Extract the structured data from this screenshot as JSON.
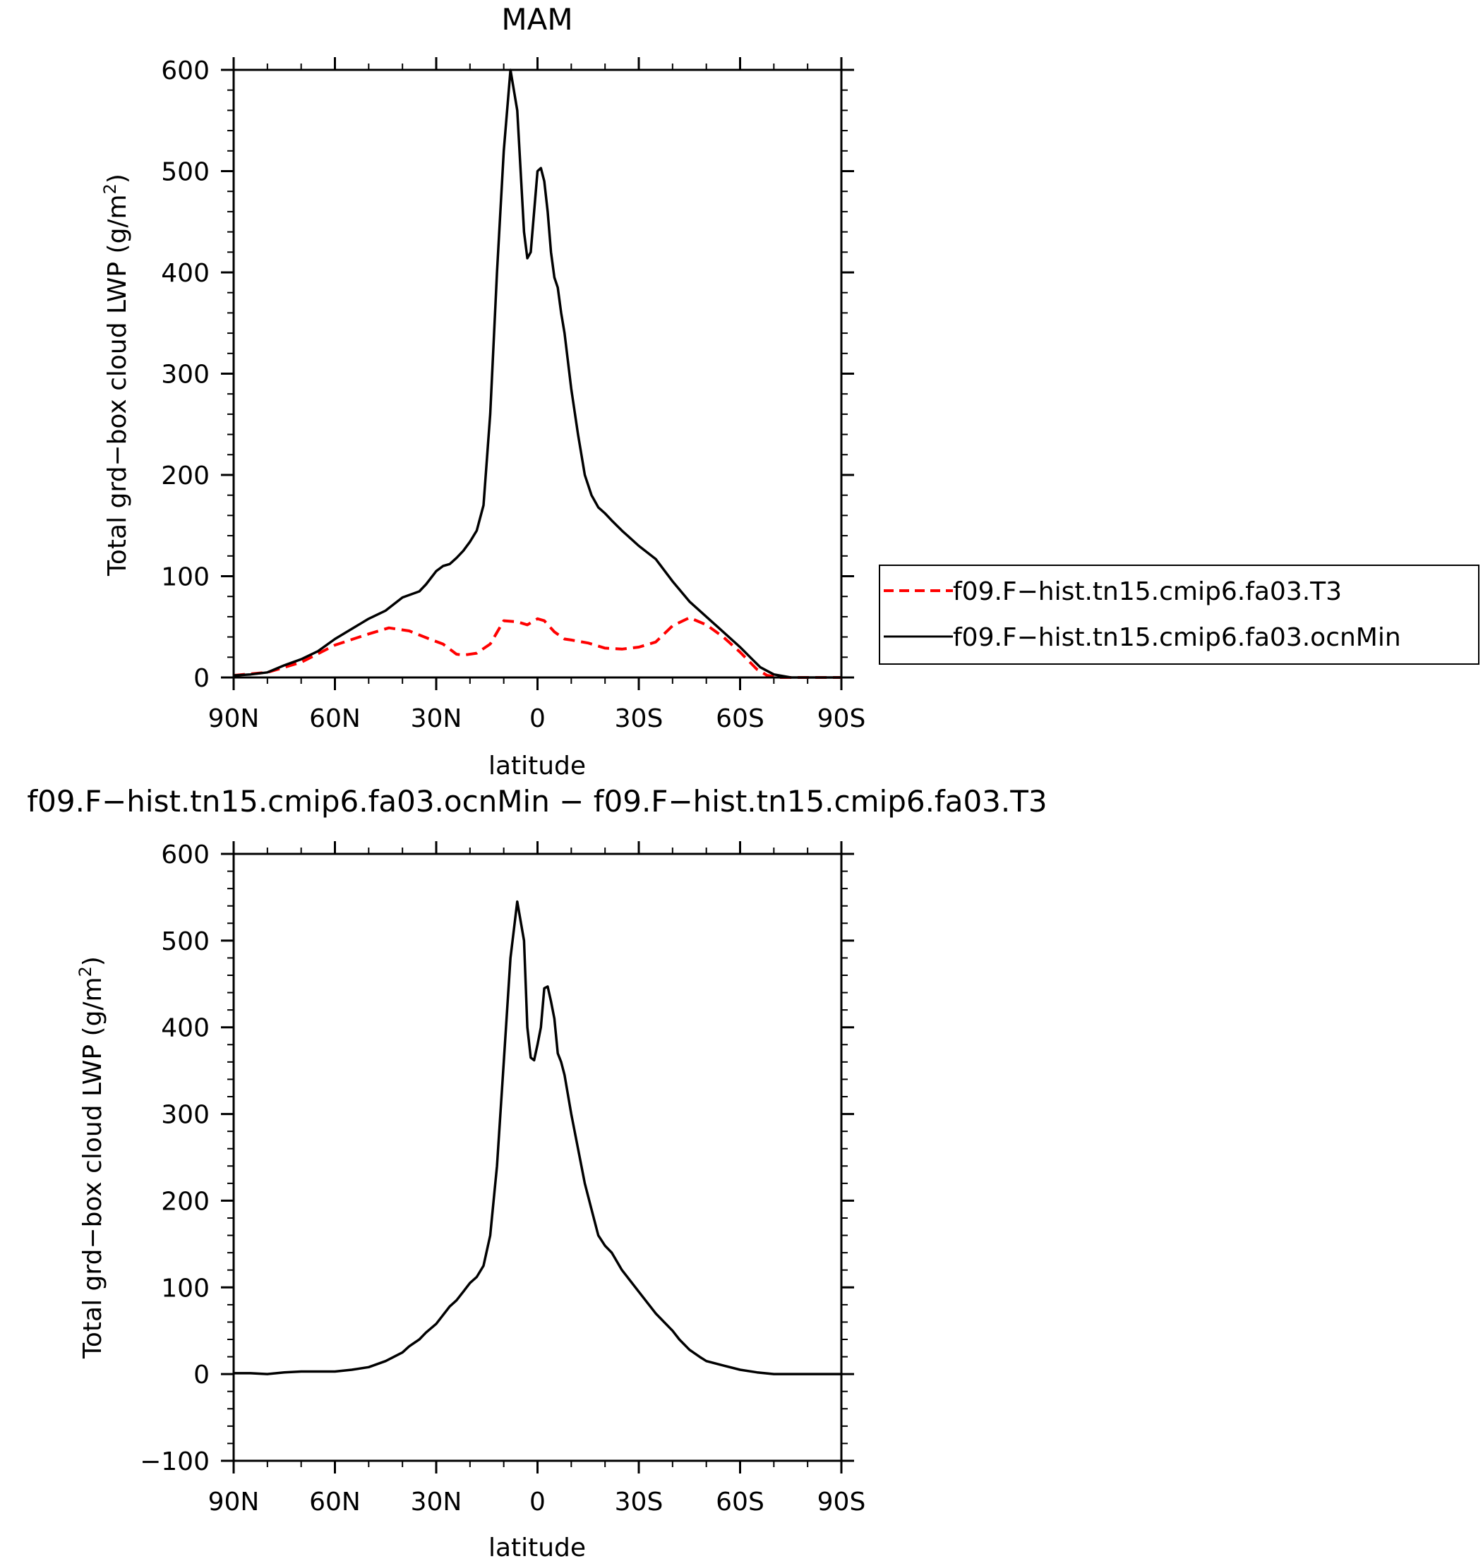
{
  "chart_data": [
    {
      "type": "line",
      "title": "MAM",
      "xlabel": "latitude",
      "ylabel": "Total grd−box cloud LWP (g/m",
      "ylabel_sup": "2",
      "ylabel_close": ")",
      "xlim": [
        90,
        -90
      ],
      "ylim": [
        0,
        600
      ],
      "x_ticks": [
        90,
        60,
        30,
        0,
        -30,
        -60,
        -90
      ],
      "x_tick_labels": [
        "90N",
        "60N",
        "30N",
        "0",
        "30S",
        "60S",
        "90S"
      ],
      "y_ticks": [
        0,
        100,
        200,
        300,
        400,
        500,
        600
      ],
      "y_tick_labels": [
        "0",
        "100",
        "200",
        "300",
        "400",
        "500",
        "600"
      ],
      "grid": false,
      "legend": "right",
      "series": [
        {
          "name": "f09.F−hist.tn15.cmip6.fa03.T3",
          "color": "#ff0000",
          "dash": "dashed",
          "x": [
            90,
            80,
            70,
            60,
            50,
            44,
            38,
            32,
            28,
            24,
            22,
            18,
            14,
            10,
            6,
            3,
            0,
            -2,
            -5,
            -8,
            -10,
            -15,
            -20,
            -25,
            -30,
            -35,
            -40,
            -45,
            -50,
            -55,
            -60,
            -65,
            -68,
            -72,
            -78,
            -85,
            -90
          ],
          "y": [
            2,
            5,
            15,
            32,
            43,
            49,
            46,
            38,
            33,
            23,
            22,
            24,
            33,
            56,
            55,
            52,
            58,
            56,
            45,
            38,
            37,
            34,
            29,
            28,
            30,
            35,
            51,
            59,
            52,
            40,
            25,
            8,
            2,
            0,
            0,
            0,
            0
          ]
        },
        {
          "name": "f09.F−hist.tn15.cmip6.fa03.ocnMin",
          "color": "#000000",
          "dash": "solid",
          "x": [
            90,
            85,
            80,
            75,
            70,
            65,
            60,
            55,
            50,
            45,
            40,
            35,
            33,
            30,
            28,
            26,
            24,
            22,
            20,
            18,
            16,
            14,
            12,
            10,
            8,
            6,
            4,
            3,
            2,
            1,
            0,
            -1,
            -2,
            -3,
            -4,
            -5,
            -6,
            -7,
            -8,
            -10,
            -12,
            -14,
            -16,
            -18,
            -20,
            -22,
            -25,
            -30,
            -35,
            -40,
            -45,
            -50,
            -55,
            -60,
            -63,
            -66,
            -70,
            -75,
            -80,
            -90
          ],
          "y": [
            2,
            3,
            5,
            12,
            18,
            26,
            38,
            48,
            58,
            66,
            79,
            85,
            92,
            105,
            110,
            112,
            118,
            125,
            134,
            145,
            170,
            260,
            400,
            520,
            600,
            560,
            440,
            414,
            420,
            460,
            500,
            503,
            490,
            460,
            420,
            395,
            385,
            360,
            340,
            285,
            240,
            200,
            180,
            168,
            162,
            155,
            145,
            130,
            117,
            95,
            75,
            60,
            45,
            30,
            20,
            10,
            3,
            0,
            0,
            0
          ]
        }
      ]
    },
    {
      "type": "line",
      "title": "f09.F−hist.tn15.cmip6.fa03.ocnMin − f09.F−hist.tn15.cmip6.fa03.T3",
      "xlabel": "latitude",
      "ylabel": "Total grd−box cloud LWP (g/m",
      "ylabel_sup": "2",
      "ylabel_close": ")",
      "xlim": [
        90,
        -90
      ],
      "ylim": [
        -100,
        600
      ],
      "x_ticks": [
        90,
        60,
        30,
        0,
        -30,
        -60,
        -90
      ],
      "x_tick_labels": [
        "90N",
        "60N",
        "30N",
        "0",
        "30S",
        "60S",
        "90S"
      ],
      "y_ticks": [
        -100,
        0,
        100,
        200,
        300,
        400,
        500,
        600
      ],
      "y_tick_labels": [
        "−100",
        "0",
        "100",
        "200",
        "300",
        "400",
        "500",
        "600"
      ],
      "grid": false,
      "series": [
        {
          "color": "#000000",
          "dash": "solid",
          "x": [
            90,
            85,
            80,
            75,
            70,
            65,
            60,
            55,
            50,
            45,
            40,
            38,
            35,
            33,
            30,
            28,
            26,
            24,
            22,
            20,
            18,
            16,
            14,
            12,
            10,
            8,
            6,
            4,
            3,
            2,
            1,
            0,
            -1,
            -2,
            -3,
            -4,
            -5,
            -6,
            -7,
            -8,
            -10,
            -12,
            -14,
            -16,
            -18,
            -20,
            -22,
            -25,
            -30,
            -35,
            -40,
            -42,
            -45,
            -48,
            -50,
            -55,
            -60,
            -65,
            -70,
            -75,
            -80,
            -90
          ],
          "y": [
            1,
            1,
            0,
            2,
            3,
            3,
            3,
            5,
            8,
            15,
            25,
            32,
            40,
            48,
            58,
            68,
            78,
            85,
            95,
            105,
            112,
            125,
            160,
            240,
            360,
            480,
            545,
            500,
            400,
            365,
            362,
            380,
            400,
            445,
            447,
            430,
            410,
            370,
            360,
            345,
            300,
            260,
            220,
            190,
            160,
            148,
            140,
            120,
            95,
            70,
            50,
            40,
            28,
            20,
            15,
            10,
            5,
            2,
            0,
            0,
            0,
            0
          ]
        }
      ]
    }
  ]
}
